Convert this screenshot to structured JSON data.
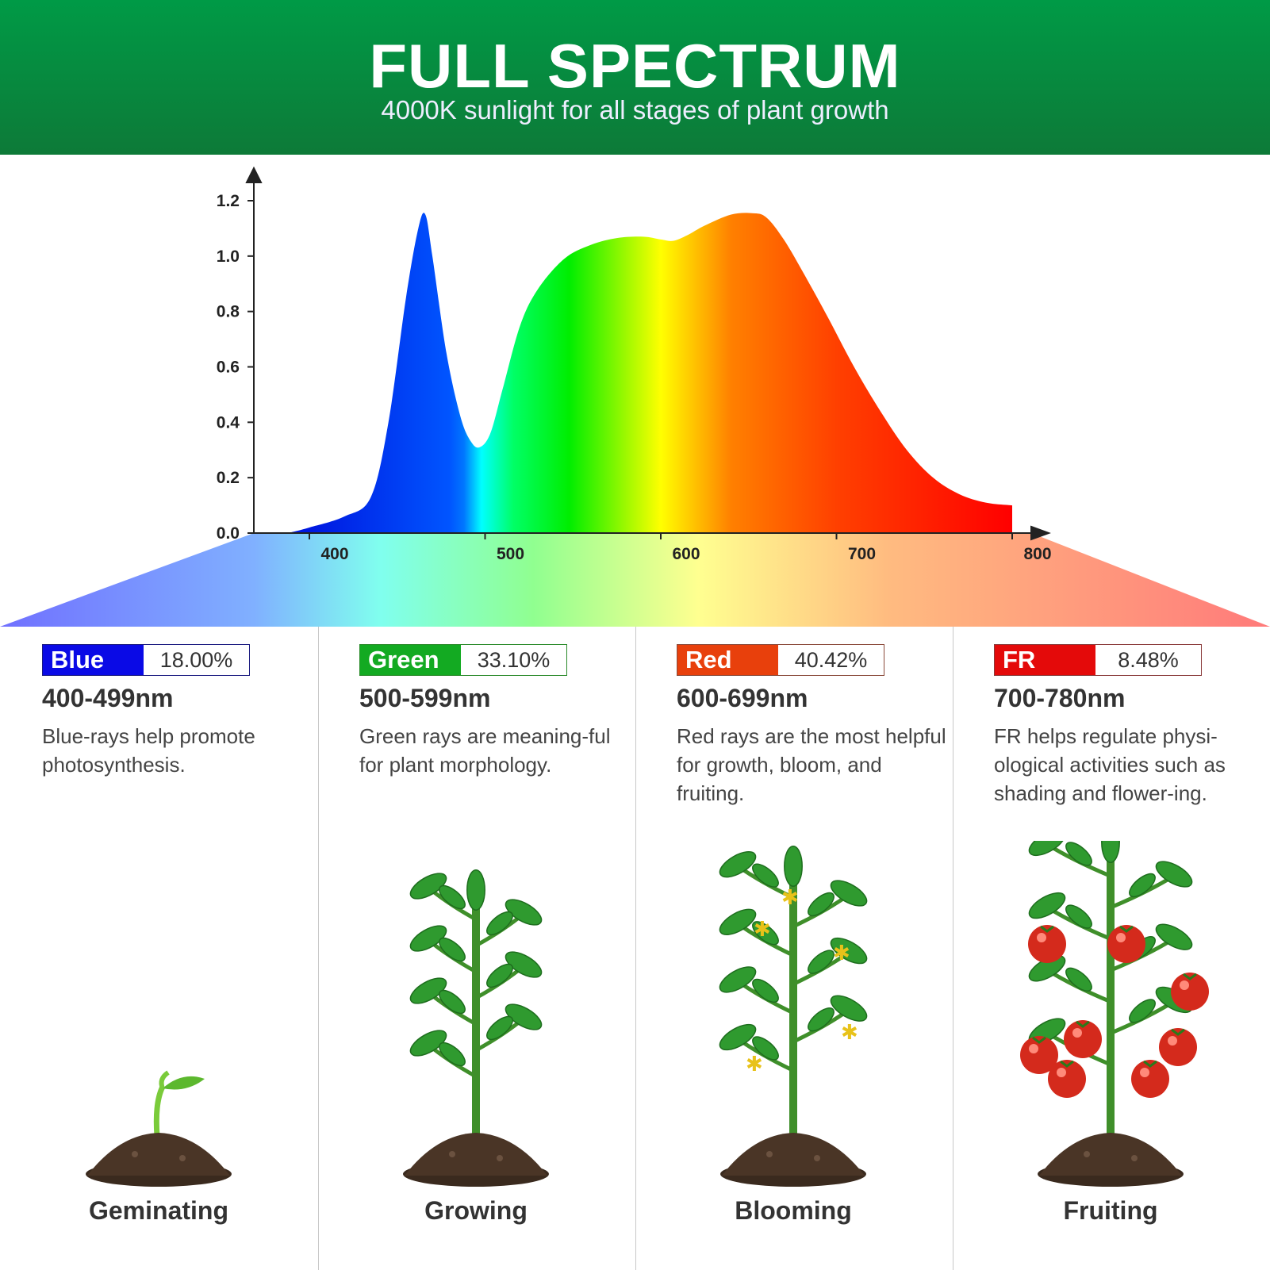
{
  "header": {
    "title": "FULL SPECTRUM",
    "subtitle": "4000K sunlight for all stages of plant growth"
  },
  "chart_data": {
    "type": "area",
    "title": "",
    "xlabel": "",
    "ylabel": "",
    "xlim": [
      360,
      820
    ],
    "ylim": [
      0,
      1.25
    ],
    "x_ticks": [
      "400",
      "500",
      "600",
      "700",
      "800"
    ],
    "y_ticks": [
      "0.0",
      "0.2",
      "0.4",
      "0.6",
      "0.8",
      "1.0",
      "1.2"
    ],
    "grid": false,
    "fill": "spectral gradient blue-cyan-green-yellow-orange-red",
    "x": [
      388,
      400,
      420,
      435,
      445,
      455,
      462,
      466,
      470,
      478,
      486,
      492,
      497,
      503,
      510,
      520,
      530,
      545,
      560,
      575,
      590,
      600,
      607,
      615,
      625,
      640,
      652,
      660,
      670,
      682,
      695,
      710,
      725,
      740,
      755,
      770,
      785,
      800
    ],
    "y": [
      0,
      0.02,
      0.06,
      0.13,
      0.4,
      0.85,
      1.1,
      1.15,
      1.0,
      0.65,
      0.42,
      0.33,
      0.31,
      0.36,
      0.52,
      0.75,
      0.88,
      0.99,
      1.04,
      1.065,
      1.07,
      1.06,
      1.055,
      1.075,
      1.11,
      1.15,
      1.155,
      1.14,
      1.06,
      0.93,
      0.78,
      0.6,
      0.44,
      0.3,
      0.2,
      0.14,
      0.11,
      0.1
    ]
  },
  "bands": [
    {
      "name": "Blue",
      "percent": "18.00%",
      "range": "400-499nm",
      "description": "Blue-rays help promote photosynthesis.",
      "stage": "Geminating",
      "color": "#0a0ae6",
      "border": "#1a1a80"
    },
    {
      "name": "Green",
      "percent": "33.10%",
      "range": "500-599nm",
      "description": "Green rays are meaning-ful for plant morphology.",
      "stage": "Growing",
      "color": "#13aa22",
      "border": "#2a8a2a"
    },
    {
      "name": "Red",
      "percent": "40.42%",
      "range": "600-699nm",
      "description": "Red rays are the most helpful for growth, bloom, and fruiting.",
      "stage": "Blooming",
      "color": "#e8400c",
      "border": "#8a4a3a"
    },
    {
      "name": "FR",
      "percent": "8.48%",
      "range": "700-780nm",
      "description": "FR helps regulate physi-ological activities such as shading and flower-ing.",
      "stage": "Fruiting",
      "color": "#e40a0a",
      "border": "#8a3a3a"
    }
  ]
}
